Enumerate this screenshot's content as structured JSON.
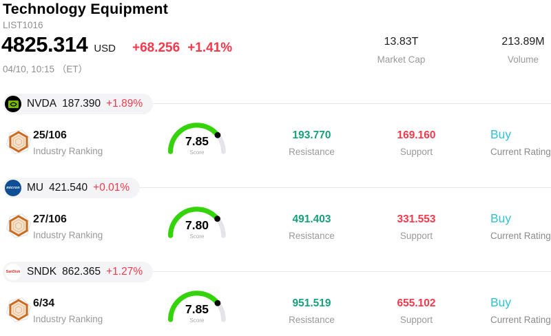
{
  "header": {
    "title": "Technology Equipment",
    "list_id": "LIST1016",
    "price": "4825.314",
    "currency": "USD",
    "change_abs": "+68.256",
    "change_pct": "+1.41%",
    "datetime": "04/10, 10:15 （ET）",
    "market_cap": {
      "value": "13.83T",
      "label": "Market Cap"
    },
    "volume": {
      "value": "213.89M",
      "label": "Volume"
    }
  },
  "colors": {
    "accent_red": "#f5384a",
    "teal": "#18a07c",
    "cyan": "#30c2cf",
    "gauge_green": "#35d30a",
    "gauge_track": "#e4e4ea",
    "pill_bg": "#f4f4f6",
    "divider": "#e7e7e9",
    "label_gray": "#999999",
    "nvidia_green": "#76b900",
    "micron_blue": "#0d4e94",
    "sandisk_red": "#e2231a"
  },
  "rows": [
    {
      "ticker": "NVDA",
      "price": "187.390",
      "change_pct": "+1.89%",
      "logo": "nvidia-logo",
      "logo_text": "",
      "ranking": "25/106",
      "ranking_label": "Industry Ranking",
      "score": "7.85",
      "score_value": 7.85,
      "score_max": 10,
      "score_label": "Score",
      "resistance": "193.770",
      "resistance_label": "Resistance",
      "support": "169.160",
      "support_label": "Support",
      "rating": "Buy",
      "rating_label": "Current Rating"
    },
    {
      "ticker": "MU",
      "price": "421.540",
      "change_pct": "+0.01%",
      "logo": "micron-logo",
      "logo_text": "micron",
      "ranking": "27/106",
      "ranking_label": "Industry Ranking",
      "score": "7.80",
      "score_value": 7.8,
      "score_max": 10,
      "score_label": "Score",
      "resistance": "491.403",
      "resistance_label": "Resistance",
      "support": "331.553",
      "support_label": "Support",
      "rating": "Buy",
      "rating_label": "Current Rating"
    },
    {
      "ticker": "SNDK",
      "price": "862.365",
      "change_pct": "+1.27%",
      "logo": "sandisk-logo",
      "logo_text": "SanDisk",
      "ranking": "6/34",
      "ranking_label": "Industry Ranking",
      "score": "7.85",
      "score_value": 7.85,
      "score_max": 10,
      "score_label": "Score",
      "resistance": "951.519",
      "resistance_label": "Resistance",
      "support": "655.102",
      "support_label": "Support",
      "rating": "Buy",
      "rating_label": "Current Rating"
    }
  ]
}
